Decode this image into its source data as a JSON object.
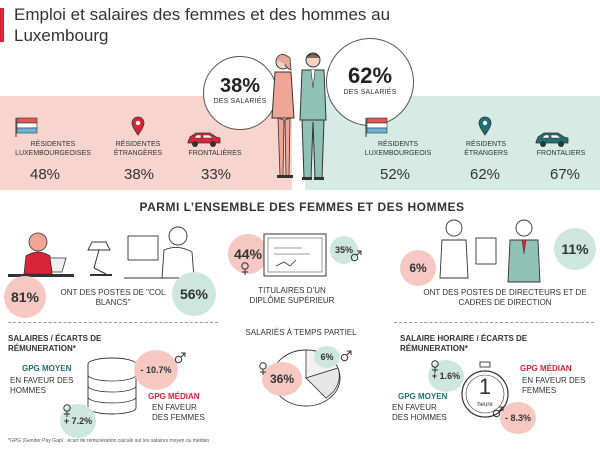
{
  "header": {
    "title": "Emploi et salaires des femmes et des hommes au Luxembourg"
  },
  "top": {
    "women_pct": "38%",
    "women_label": "DES SALARIÉS",
    "men_pct": "62%",
    "men_label": "DES SALARIÉS"
  },
  "women_categories": [
    {
      "label": "RÉSIDENTES LUXEMBOURGEOISES",
      "value": "48%"
    },
    {
      "label": "RÉSIDENTES ÉTRANGÈRES",
      "value": "38%"
    },
    {
      "label": "FRONTALIÈRES",
      "value": "33%"
    }
  ],
  "men_categories": [
    {
      "label": "RÉSIDENTS LUXEMBOURGEOIS",
      "value": "52%"
    },
    {
      "label": "RÉSIDENTS ÉTRANGERS",
      "value": "62%"
    },
    {
      "label": "FRONTALIERS",
      "value": "67%"
    }
  ],
  "section": {
    "heading": "PARMI L’ENSEMBLE DES FEMMES ET DES HOMMES"
  },
  "white_collar": {
    "women": "81%",
    "men": "56%",
    "label": "ONT DES POSTES DE \"COL BLANCS\""
  },
  "diploma": {
    "women": "44%",
    "men": "35%",
    "label": "TITULAIRES D’UN DIPLÔME SUPÉRIEUR"
  },
  "directors": {
    "women": "6%",
    "men": "11%",
    "label": "ONT DES POSTES DE DIRECTEURS ET DE CADRES DE DIRECTION"
  },
  "salaries": {
    "title": "SALAIRES / ÉCARTS DE RÉMUNERATION*",
    "gpg_moyen": "GPG MOYEN",
    "gpg_moyen_sub": "EN FAVEUR DES HOMMES",
    "moyen_value": "+ 7.2%",
    "gpg_median": "GPG MÉDIAN",
    "gpg_median_sub": "EN FAVEUR DES FEMMES",
    "median_value": "- 10.7%"
  },
  "part_time": {
    "title": "SALARIÉS À TEMPS PARTIEL",
    "women": "36%",
    "men": "6%"
  },
  "hourly": {
    "title": "SALAIRE HORAIRE / ÉCARTS DE RÉMUNERATION*",
    "gpg_moyen": "GPG MOYEN",
    "gpg_moyen_sub": "EN FAVEUR DES HOMMES",
    "moyen_value": "+ 1.6%",
    "gpg_median": "GPG MÉDIAN",
    "gpg_median_sub": "EN FAVEUR DES FEMMES",
    "median_value": "- 8.3%",
    "clock_number": "1",
    "clock_unit": "heure"
  },
  "footnote": {
    "text": "*GPG (Gender Pay Gap) : écart de rémunération calculé sur les salaires moyen ou médian"
  },
  "colors": {
    "accent": "#d9243a",
    "pink": "#f6c8c1",
    "green": "#cde6de",
    "teal": "#1f6f76"
  }
}
